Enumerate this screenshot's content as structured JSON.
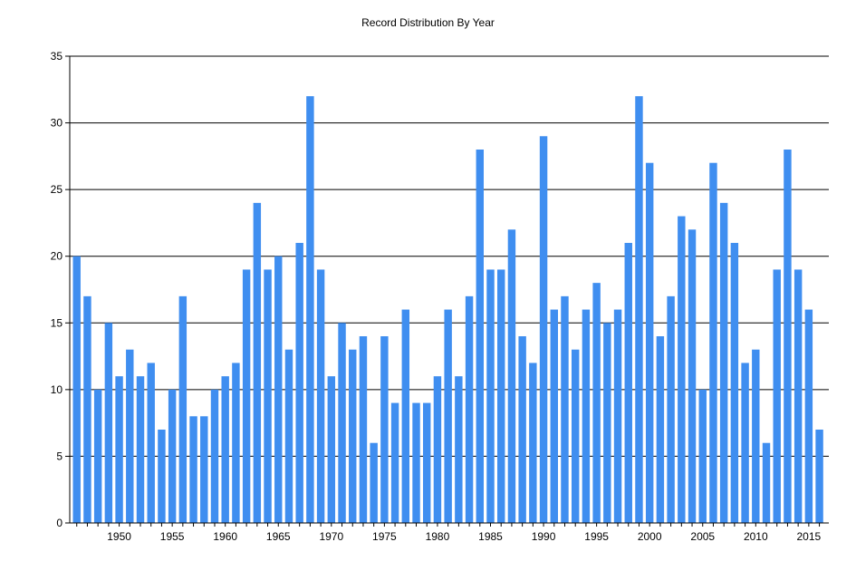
{
  "chart_data": {
    "type": "bar",
    "title": "Record Distribution By Year",
    "xlabel": "",
    "ylabel": "",
    "ylim": [
      0,
      35
    ],
    "yticks": [
      0,
      5,
      10,
      15,
      20,
      25,
      30,
      35
    ],
    "xticks": [
      1950,
      1955,
      1960,
      1965,
      1970,
      1975,
      1980,
      1985,
      1990,
      1995,
      2000,
      2005,
      2010,
      2015
    ],
    "grid": "horizontal",
    "bar_color": "#3f8ef0",
    "categories": [
      1946,
      1947,
      1948,
      1949,
      1950,
      1951,
      1952,
      1953,
      1954,
      1955,
      1956,
      1957,
      1958,
      1959,
      1960,
      1961,
      1962,
      1963,
      1964,
      1965,
      1966,
      1967,
      1968,
      1969,
      1970,
      1971,
      1972,
      1973,
      1974,
      1975,
      1976,
      1977,
      1978,
      1979,
      1980,
      1981,
      1982,
      1983,
      1984,
      1985,
      1986,
      1987,
      1988,
      1989,
      1990,
      1991,
      1992,
      1993,
      1994,
      1995,
      1996,
      1997,
      1998,
      1999,
      2000,
      2001,
      2002,
      2003,
      2004,
      2005,
      2006,
      2007,
      2008,
      2009,
      2010,
      2011,
      2012,
      2013,
      2014,
      2015,
      2016
    ],
    "values": [
      20,
      17,
      10,
      15,
      11,
      13,
      11,
      12,
      7,
      10,
      17,
      8,
      8,
      10,
      11,
      12,
      19,
      24,
      19,
      20,
      13,
      21,
      32,
      19,
      11,
      15,
      13,
      14,
      6,
      14,
      9,
      16,
      9,
      9,
      11,
      16,
      11,
      17,
      28,
      19,
      19,
      22,
      14,
      12,
      29,
      16,
      17,
      13,
      16,
      18,
      15,
      16,
      21,
      32,
      27,
      14,
      17,
      23,
      22,
      10,
      27,
      24,
      21,
      12,
      13,
      6,
      19,
      28,
      19,
      16,
      7
    ]
  }
}
